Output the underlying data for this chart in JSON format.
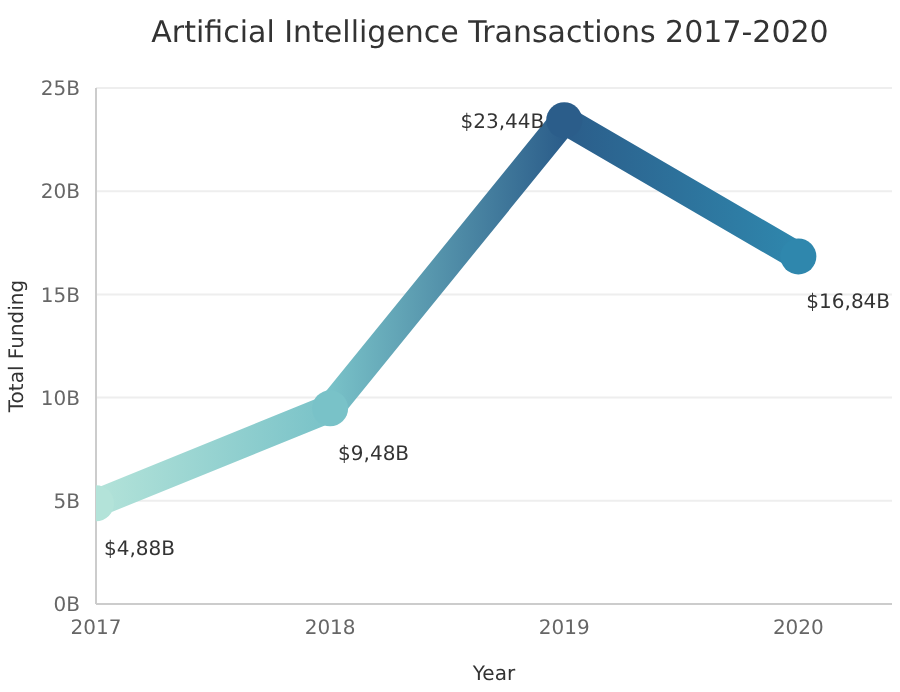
{
  "chart_data": {
    "type": "line",
    "title": "Artificial Intelligence Transactions 2017-2020",
    "xlabel": "Year",
    "ylabel": "Total Funding",
    "x": [
      2017,
      2018,
      2019,
      2020
    ],
    "xlim": [
      2017,
      2020.4
    ],
    "xticks": [
      2017,
      2018,
      2019,
      2020
    ],
    "ylim": [
      0,
      25
    ],
    "yticks": [
      {
        "value": 0,
        "label": "0B"
      },
      {
        "value": 5,
        "label": "5B"
      },
      {
        "value": 10,
        "label": "10B"
      },
      {
        "value": 15,
        "label": "15B"
      },
      {
        "value": 20,
        "label": "20B"
      },
      {
        "value": 25,
        "label": "25B"
      }
    ],
    "series": [
      {
        "values": [
          4.88,
          9.48,
          23.44,
          16.84
        ],
        "colors": [
          "#b3e3d9",
          "#79c2c8",
          "#2b5d8a",
          "#2f87ad"
        ],
        "value_labels": [
          "$4,88B",
          "$9,48B",
          "$23,44B",
          "$16,84B"
        ]
      }
    ],
    "grid": "y",
    "marker": "circle",
    "line_style": "solid"
  }
}
